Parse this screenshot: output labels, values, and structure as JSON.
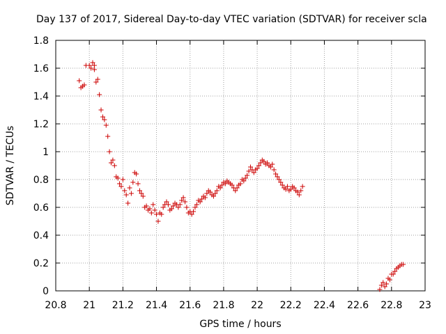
{
  "chart_data": {
    "type": "scatter",
    "title": "Day 137 of 2017, Sidereal Day-to-day VTEC variation (SDTVAR) for receiver scla",
    "xlabel": "GPS time / hours",
    "ylabel": "SDTVAR / TECUs",
    "xlim": [
      20.8,
      23
    ],
    "ylim": [
      0,
      1.8
    ],
    "xticks": [
      "20.8",
      "21",
      "21.2",
      "21.4",
      "21.6",
      "21.8",
      "22",
      "22.2",
      "22.4",
      "22.6",
      "22.8",
      "23"
    ],
    "yticks": [
      "0",
      "0.2",
      "0.4",
      "0.6",
      "0.8",
      "1",
      "1.2",
      "1.4",
      "1.6",
      "1.8"
    ],
    "marker": "+",
    "series": [
      {
        "name": "SDTVAR",
        "color": "#cc0000",
        "points": [
          [
            20.94,
            1.51
          ],
          [
            20.95,
            1.46
          ],
          [
            20.96,
            1.47
          ],
          [
            20.97,
            1.48
          ],
          [
            20.98,
            1.62
          ],
          [
            21.0,
            1.62
          ],
          [
            21.01,
            1.6
          ],
          [
            21.02,
            1.64
          ],
          [
            21.03,
            1.59
          ],
          [
            21.03,
            1.62
          ],
          [
            21.04,
            1.5
          ],
          [
            21.05,
            1.52
          ],
          [
            21.06,
            1.41
          ],
          [
            21.07,
            1.3
          ],
          [
            21.08,
            1.25
          ],
          [
            21.09,
            1.23
          ],
          [
            21.1,
            1.19
          ],
          [
            21.11,
            1.11
          ],
          [
            21.12,
            1.0
          ],
          [
            21.13,
            0.92
          ],
          [
            21.14,
            0.94
          ],
          [
            21.15,
            0.9
          ],
          [
            21.16,
            0.82
          ],
          [
            21.17,
            0.81
          ],
          [
            21.18,
            0.77
          ],
          [
            21.19,
            0.75
          ],
          [
            21.2,
            0.8
          ],
          [
            21.21,
            0.72
          ],
          [
            21.22,
            0.69
          ],
          [
            21.23,
            0.63
          ],
          [
            21.24,
            0.74
          ],
          [
            21.25,
            0.7
          ],
          [
            21.26,
            0.78
          ],
          [
            21.27,
            0.85
          ],
          [
            21.28,
            0.84
          ],
          [
            21.29,
            0.77
          ],
          [
            21.3,
            0.72
          ],
          [
            21.31,
            0.7
          ],
          [
            21.32,
            0.68
          ],
          [
            21.33,
            0.6
          ],
          [
            21.34,
            0.61
          ],
          [
            21.35,
            0.58
          ],
          [
            21.36,
            0.59
          ],
          [
            21.37,
            0.56
          ],
          [
            21.38,
            0.62
          ],
          [
            21.39,
            0.58
          ],
          [
            21.4,
            0.55
          ],
          [
            21.41,
            0.5
          ],
          [
            21.42,
            0.56
          ],
          [
            21.43,
            0.55
          ],
          [
            21.44,
            0.6
          ],
          [
            21.45,
            0.62
          ],
          [
            21.46,
            0.64
          ],
          [
            21.47,
            0.62
          ],
          [
            21.48,
            0.58
          ],
          [
            21.49,
            0.59
          ],
          [
            21.5,
            0.61
          ],
          [
            21.51,
            0.63
          ],
          [
            21.52,
            0.62
          ],
          [
            21.53,
            0.6
          ],
          [
            21.54,
            0.62
          ],
          [
            21.55,
            0.65
          ],
          [
            21.56,
            0.67
          ],
          [
            21.57,
            0.64
          ],
          [
            21.58,
            0.6
          ],
          [
            21.59,
            0.56
          ],
          [
            21.6,
            0.57
          ],
          [
            21.61,
            0.55
          ],
          [
            21.62,
            0.57
          ],
          [
            21.63,
            0.6
          ],
          [
            21.64,
            0.62
          ],
          [
            21.65,
            0.65
          ],
          [
            21.66,
            0.64
          ],
          [
            21.67,
            0.66
          ],
          [
            21.68,
            0.68
          ],
          [
            21.69,
            0.67
          ],
          [
            21.7,
            0.7
          ],
          [
            21.71,
            0.72
          ],
          [
            21.72,
            0.71
          ],
          [
            21.73,
            0.69
          ],
          [
            21.74,
            0.68
          ],
          [
            21.75,
            0.7
          ],
          [
            21.76,
            0.72
          ],
          [
            21.77,
            0.75
          ],
          [
            21.78,
            0.74
          ],
          [
            21.79,
            0.76
          ],
          [
            21.8,
            0.78
          ],
          [
            21.81,
            0.77
          ],
          [
            21.82,
            0.79
          ],
          [
            21.83,
            0.78
          ],
          [
            21.84,
            0.77
          ],
          [
            21.85,
            0.76
          ],
          [
            21.86,
            0.74
          ],
          [
            21.87,
            0.72
          ],
          [
            21.88,
            0.74
          ],
          [
            21.89,
            0.76
          ],
          [
            21.9,
            0.77
          ],
          [
            21.91,
            0.8
          ],
          [
            21.92,
            0.79
          ],
          [
            21.93,
            0.81
          ],
          [
            21.94,
            0.83
          ],
          [
            21.95,
            0.86
          ],
          [
            21.96,
            0.89
          ],
          [
            21.97,
            0.87
          ],
          [
            21.98,
            0.85
          ],
          [
            21.99,
            0.87
          ],
          [
            22.0,
            0.88
          ],
          [
            22.01,
            0.9
          ],
          [
            22.02,
            0.92
          ],
          [
            22.03,
            0.94
          ],
          [
            22.04,
            0.93
          ],
          [
            22.05,
            0.91
          ],
          [
            22.06,
            0.92
          ],
          [
            22.07,
            0.9
          ],
          [
            22.08,
            0.89
          ],
          [
            22.09,
            0.91
          ],
          [
            22.1,
            0.87
          ],
          [
            22.11,
            0.84
          ],
          [
            22.12,
            0.82
          ],
          [
            22.13,
            0.8
          ],
          [
            22.14,
            0.78
          ],
          [
            22.15,
            0.76
          ],
          [
            22.16,
            0.74
          ],
          [
            22.17,
            0.73
          ],
          [
            22.18,
            0.75
          ],
          [
            22.19,
            0.72
          ],
          [
            22.2,
            0.73
          ],
          [
            22.21,
            0.75
          ],
          [
            22.22,
            0.74
          ],
          [
            22.23,
            0.72
          ],
          [
            22.24,
            0.71
          ],
          [
            22.25,
            0.69
          ],
          [
            22.26,
            0.72
          ],
          [
            22.27,
            0.75
          ],
          [
            22.73,
            0.01
          ],
          [
            22.74,
            0.04
          ],
          [
            22.75,
            0.06
          ],
          [
            22.76,
            0.03
          ],
          [
            22.77,
            0.05
          ],
          [
            22.78,
            0.09
          ],
          [
            22.79,
            0.08
          ],
          [
            22.8,
            0.12
          ],
          [
            22.81,
            0.12
          ],
          [
            22.82,
            0.14
          ],
          [
            22.83,
            0.16
          ],
          [
            22.84,
            0.17
          ],
          [
            22.85,
            0.18
          ],
          [
            22.86,
            0.19
          ],
          [
            22.87,
            0.19
          ]
        ]
      }
    ]
  }
}
